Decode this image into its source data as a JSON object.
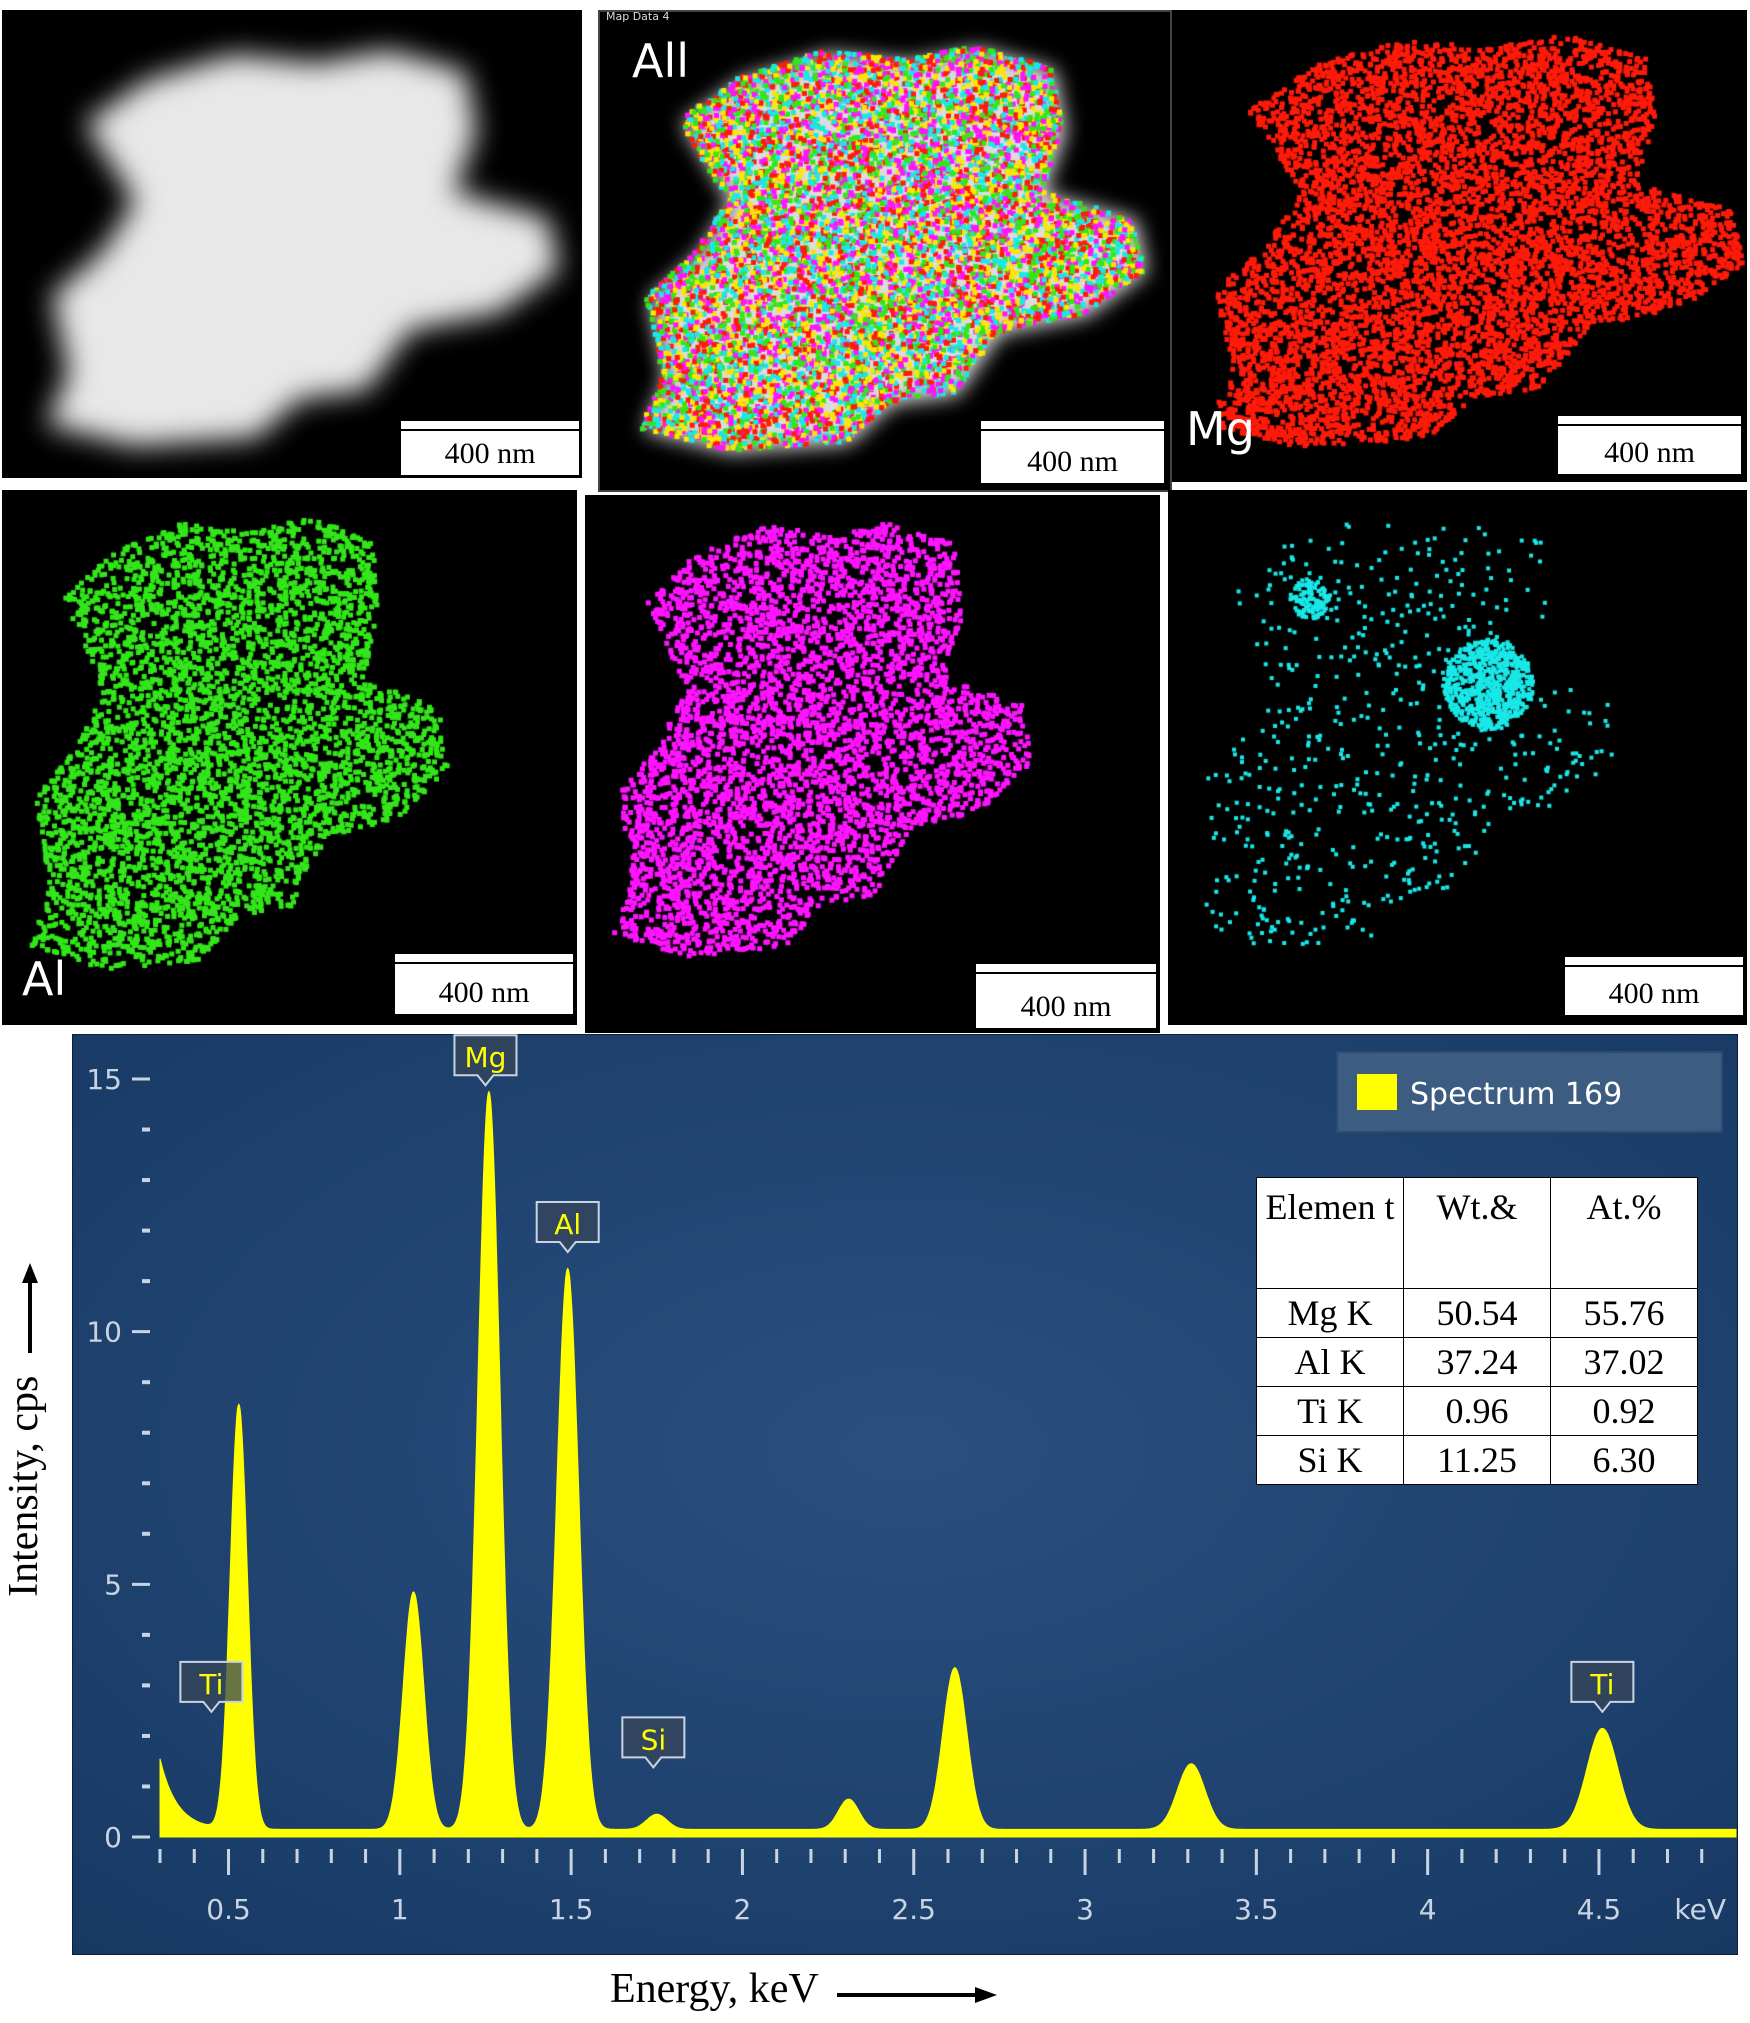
{
  "maps": {
    "scale_label": "400 nm",
    "map_header": "Map Data 4",
    "labels": {
      "all": "All",
      "mg": "Mg",
      "al": "Al"
    },
    "colors": {
      "mg": "#ff1a0a",
      "al": "#33e61a",
      "ti": "#ff14ff",
      "si": "#1ae8e8",
      "haadf": "#e8e8e8"
    }
  },
  "chart_data": {
    "type": "line",
    "legend": "Spectrum 169",
    "legend_color": "#ffff00",
    "xlabel": "Energy, keV",
    "ylabel": "Intensity, cps",
    "x_unit": "keV",
    "xlim": [
      0.3,
      4.9
    ],
    "ylim": [
      0,
      15
    ],
    "x_ticks": [
      0.5,
      1,
      1.5,
      2,
      2.5,
      3,
      3.5,
      4,
      4.5
    ],
    "y_ticks": [
      0,
      5,
      10,
      15
    ],
    "background_color": "#1e3f6b",
    "fill_color": "#ffff00",
    "peak_labels": [
      {
        "label": "Ti",
        "x": 0.45,
        "y": 2.2
      },
      {
        "label": "Mg",
        "x": 1.25,
        "y": 14.6
      },
      {
        "label": "Al",
        "x": 1.49,
        "y": 11.3
      },
      {
        "label": "Si",
        "x": 1.74,
        "y": 1.1
      },
      {
        "label": "Ti",
        "x": 4.51,
        "y": 2.2
      }
    ],
    "peaks": [
      {
        "x": 0.53,
        "y": 8.4,
        "width": 0.025
      },
      {
        "x": 1.04,
        "y": 4.7,
        "width": 0.03
      },
      {
        "x": 1.26,
        "y": 14.6,
        "width": 0.032
      },
      {
        "x": 1.49,
        "y": 11.1,
        "width": 0.032
      },
      {
        "x": 1.75,
        "y": 0.3,
        "width": 0.03
      },
      {
        "x": 2.31,
        "y": 0.6,
        "width": 0.03
      },
      {
        "x": 2.62,
        "y": 3.2,
        "width": 0.035
      },
      {
        "x": 3.31,
        "y": 1.3,
        "width": 0.04
      },
      {
        "x": 4.51,
        "y": 2.0,
        "width": 0.045
      }
    ],
    "table": {
      "headers": [
        "Elemen t",
        "Wt.&",
        "At.%"
      ],
      "rows": [
        [
          "Mg K",
          "50.54",
          "55.76"
        ],
        [
          "Al K",
          "37.24",
          "37.02"
        ],
        [
          "Ti K",
          "0.96",
          "0.92"
        ],
        [
          "Si K",
          "11.25",
          "6.30"
        ]
      ]
    }
  }
}
